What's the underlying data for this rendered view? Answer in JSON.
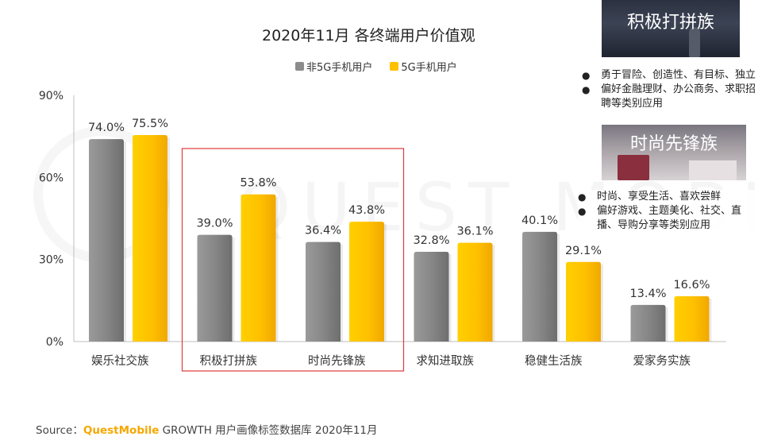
{
  "chart_data": {
    "type": "bar",
    "title": "2020年11月 各终端用户价值观",
    "categories": [
      "娱乐社交族",
      "积极打拼族",
      "时尚先锋族",
      "求知进取族",
      "稳健生活族",
      "爱家务实族"
    ],
    "series": [
      {
        "name": "非5G手机用户",
        "color": "#8c8c8c",
        "values": [
          74.0,
          39.0,
          36.4,
          32.8,
          40.1,
          13.4
        ],
        "labels": [
          "74.0%",
          "39.0%",
          "36.4%",
          "32.8%",
          "40.1%",
          "13.4%"
        ]
      },
      {
        "name": "5G手机用户",
        "color": "#ffc000",
        "values": [
          75.5,
          53.8,
          43.8,
          36.1,
          29.1,
          16.6
        ],
        "labels": [
          "75.5%",
          "53.8%",
          "43.8%",
          "36.1%",
          "29.1%",
          "16.6%"
        ]
      }
    ],
    "ylim": [
      0,
      90
    ],
    "yticks": [
      "0%",
      "30%",
      "60%",
      "90%"
    ],
    "highlighted_categories": [
      "积极打拼族",
      "时尚先锋族"
    ],
    "highlight_color": "#e03a3a",
    "legend_position": "top-center",
    "grid": false
  },
  "source": {
    "prefix": "Source：",
    "brand": "QuestMobile",
    "rest": " GROWTH 用户画像标签数据库 2020年11月"
  },
  "watermark": "QUEST MOBILE",
  "panels": [
    {
      "title": "积极打拼族",
      "bullets": [
        "勇于冒险、创造性、有目标、独立",
        "偏好金融理财、办公商务、求职招聘等类别应用"
      ]
    },
    {
      "title": "时尚先锋族",
      "bullets": [
        "时尚、享受生活、喜欢尝鲜",
        "偏好游戏、主题美化、社交、直播、导购分享等类别应用"
      ]
    }
  ]
}
